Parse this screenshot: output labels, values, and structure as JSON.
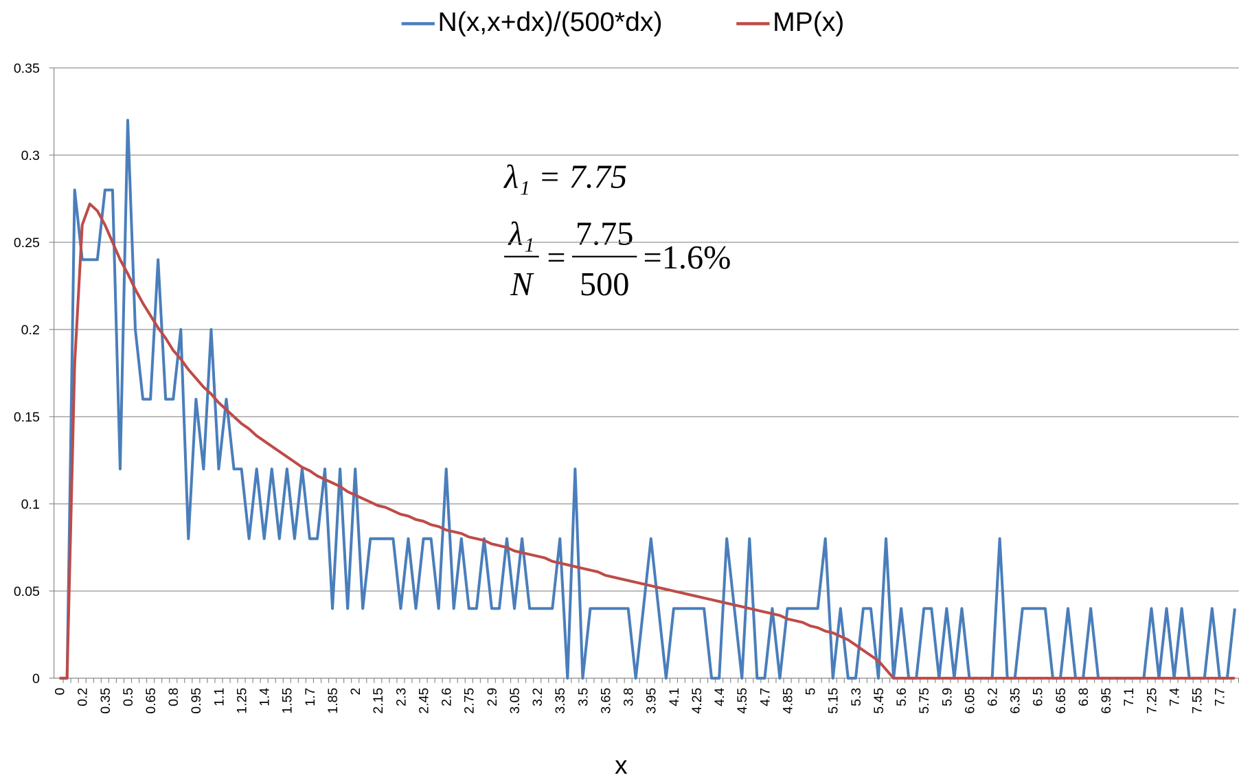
{
  "chart_data": {
    "type": "line",
    "x_label": "x",
    "annotations": {
      "line1": "λ₁ = 7.75",
      "frac1_num": "λ₁",
      "frac1_den": "N",
      "equals": "=",
      "frac2_num": "7.75",
      "frac2_den": "500",
      "result": "=1.6%"
    },
    "categories": [
      "0",
      null,
      null,
      "0.2",
      null,
      null,
      "0.35",
      null,
      null,
      "0.5",
      null,
      null,
      "0.65",
      null,
      null,
      "0.8",
      null,
      null,
      "0.95",
      null,
      null,
      "1.1",
      null,
      null,
      "1.25",
      null,
      null,
      "1.4",
      null,
      null,
      "1.55",
      null,
      null,
      "1.7",
      null,
      null,
      "1.85",
      null,
      null,
      "2",
      null,
      null,
      "2.15",
      null,
      null,
      "2.3",
      null,
      null,
      "2.45",
      null,
      null,
      "2.6",
      null,
      null,
      "2.75",
      null,
      null,
      "2.9",
      null,
      null,
      "3.05",
      null,
      null,
      "3.2",
      null,
      null,
      "3.35",
      null,
      null,
      "3.5",
      null,
      null,
      "3.65",
      null,
      null,
      "3.8",
      null,
      null,
      "3.95",
      null,
      null,
      "4.1",
      null,
      null,
      "4.25",
      null,
      null,
      "4.4",
      null,
      null,
      "4.55",
      null,
      null,
      "4.7",
      null,
      null,
      "4.85",
      null,
      null,
      "5",
      null,
      null,
      "5.15",
      null,
      null,
      "5.3",
      null,
      null,
      "5.45",
      null,
      null,
      "5.6",
      null,
      null,
      "5.75",
      null,
      null,
      "5.9",
      null,
      null,
      "6.05",
      null,
      null,
      "6.2",
      null,
      null,
      "6.35",
      null,
      null,
      "6.5",
      null,
      null,
      "6.65",
      null,
      null,
      "6.8",
      null,
      null,
      "6.95",
      null,
      null,
      "7.1",
      null,
      null,
      "7.25",
      null,
      null,
      "7.4",
      null,
      null,
      "7.55",
      null,
      null,
      "7.7",
      null,
      null
    ],
    "series": [
      {
        "name": "N(x,x+dx)/(500*dx)",
        "color": "#4a7ebb",
        "values": [
          0,
          0,
          0.28,
          0.24,
          0.24,
          0.24,
          0.28,
          0.28,
          0.12,
          0.32,
          0.2,
          0.16,
          0.16,
          0.24,
          0.16,
          0.16,
          0.2,
          0.08,
          0.16,
          0.12,
          0.2,
          0.12,
          0.16,
          0.12,
          0.12,
          0.08,
          0.12,
          0.08,
          0.12,
          0.08,
          0.12,
          0.08,
          0.12,
          0.08,
          0.08,
          0.12,
          0.04,
          0.12,
          0.04,
          0.12,
          0.04,
          0.08,
          0.08,
          0.08,
          0.08,
          0.04,
          0.08,
          0.04,
          0.08,
          0.08,
          0.04,
          0.12,
          0.04,
          0.08,
          0.04,
          0.04,
          0.08,
          0.04,
          0.04,
          0.08,
          0.04,
          0.08,
          0.04,
          0.04,
          0.04,
          0.04,
          0.08,
          0,
          0.12,
          0,
          0.04,
          0.04,
          0.04,
          0.04,
          0.04,
          0.04,
          0,
          0.04,
          0.08,
          0.04,
          0,
          0.04,
          0.04,
          0.04,
          0.04,
          0.04,
          0,
          0,
          0.08,
          0.04,
          0,
          0.08,
          0,
          0,
          0.04,
          0,
          0.04,
          0.04,
          0.04,
          0.04,
          0.04,
          0.08,
          0,
          0.04,
          0,
          0,
          0.04,
          0.04,
          0,
          0.08,
          0,
          0.04,
          0,
          0,
          0.04,
          0.04,
          0,
          0.04,
          0,
          0.04,
          0,
          0,
          0,
          0,
          0.08,
          0,
          0,
          0.04,
          0.04,
          0.04,
          0.04,
          0,
          0,
          0.04,
          0,
          0,
          0.04,
          0,
          0,
          0,
          0,
          0,
          0,
          0,
          0.04,
          0,
          0.04,
          0,
          0.04,
          0,
          0,
          0,
          0.04,
          0,
          0,
          0.04
        ]
      },
      {
        "name": "MP(x)",
        "color": "#be4b48",
        "values": [
          0,
          0,
          0.18,
          0.26,
          0.272,
          0.268,
          0.26,
          0.25,
          0.24,
          0.232,
          0.223,
          0.215,
          0.208,
          0.201,
          0.195,
          0.188,
          0.183,
          0.177,
          0.172,
          0.167,
          0.163,
          0.158,
          0.154,
          0.15,
          0.146,
          0.143,
          0.139,
          0.136,
          0.133,
          0.13,
          0.127,
          0.124,
          0.121,
          0.119,
          0.116,
          0.114,
          0.112,
          0.11,
          0.107,
          0.105,
          0.103,
          0.101,
          0.099,
          0.098,
          0.096,
          0.094,
          0.093,
          0.091,
          0.09,
          0.088,
          0.087,
          0.085,
          0.084,
          0.083,
          0.081,
          0.08,
          0.079,
          0.077,
          0.076,
          0.075,
          0.073,
          0.072,
          0.071,
          0.07,
          0.069,
          0.067,
          0.066,
          0.065,
          0.064,
          0.063,
          0.062,
          0.061,
          0.059,
          0.058,
          0.057,
          0.056,
          0.055,
          0.054,
          0.053,
          0.052,
          0.051,
          0.05,
          0.049,
          0.048,
          0.047,
          0.046,
          0.045,
          0.044,
          0.043,
          0.042,
          0.041,
          0.04,
          0.039,
          0.038,
          0.037,
          0.036,
          0.034,
          0.033,
          0.032,
          0.03,
          0.029,
          0.027,
          0.026,
          0.024,
          0.022,
          0.019,
          0.016,
          0.013,
          0.01,
          0.005,
          0,
          0,
          0,
          0,
          0,
          0,
          0,
          0,
          0,
          0,
          0,
          0,
          0,
          0,
          0,
          0,
          0,
          0,
          0,
          0,
          0,
          0,
          0,
          0,
          0,
          0,
          0,
          0,
          0,
          0,
          0,
          0,
          0,
          0,
          0,
          0,
          0,
          0,
          0,
          0,
          0,
          0,
          0,
          0,
          0,
          0
        ]
      }
    ],
    "ylim": [
      0,
      0.35
    ],
    "yticks": [
      0,
      0.05,
      0.1,
      0.15,
      0.2,
      0.25,
      0.3,
      0.35
    ],
    "grid": true,
    "legend": "top"
  }
}
